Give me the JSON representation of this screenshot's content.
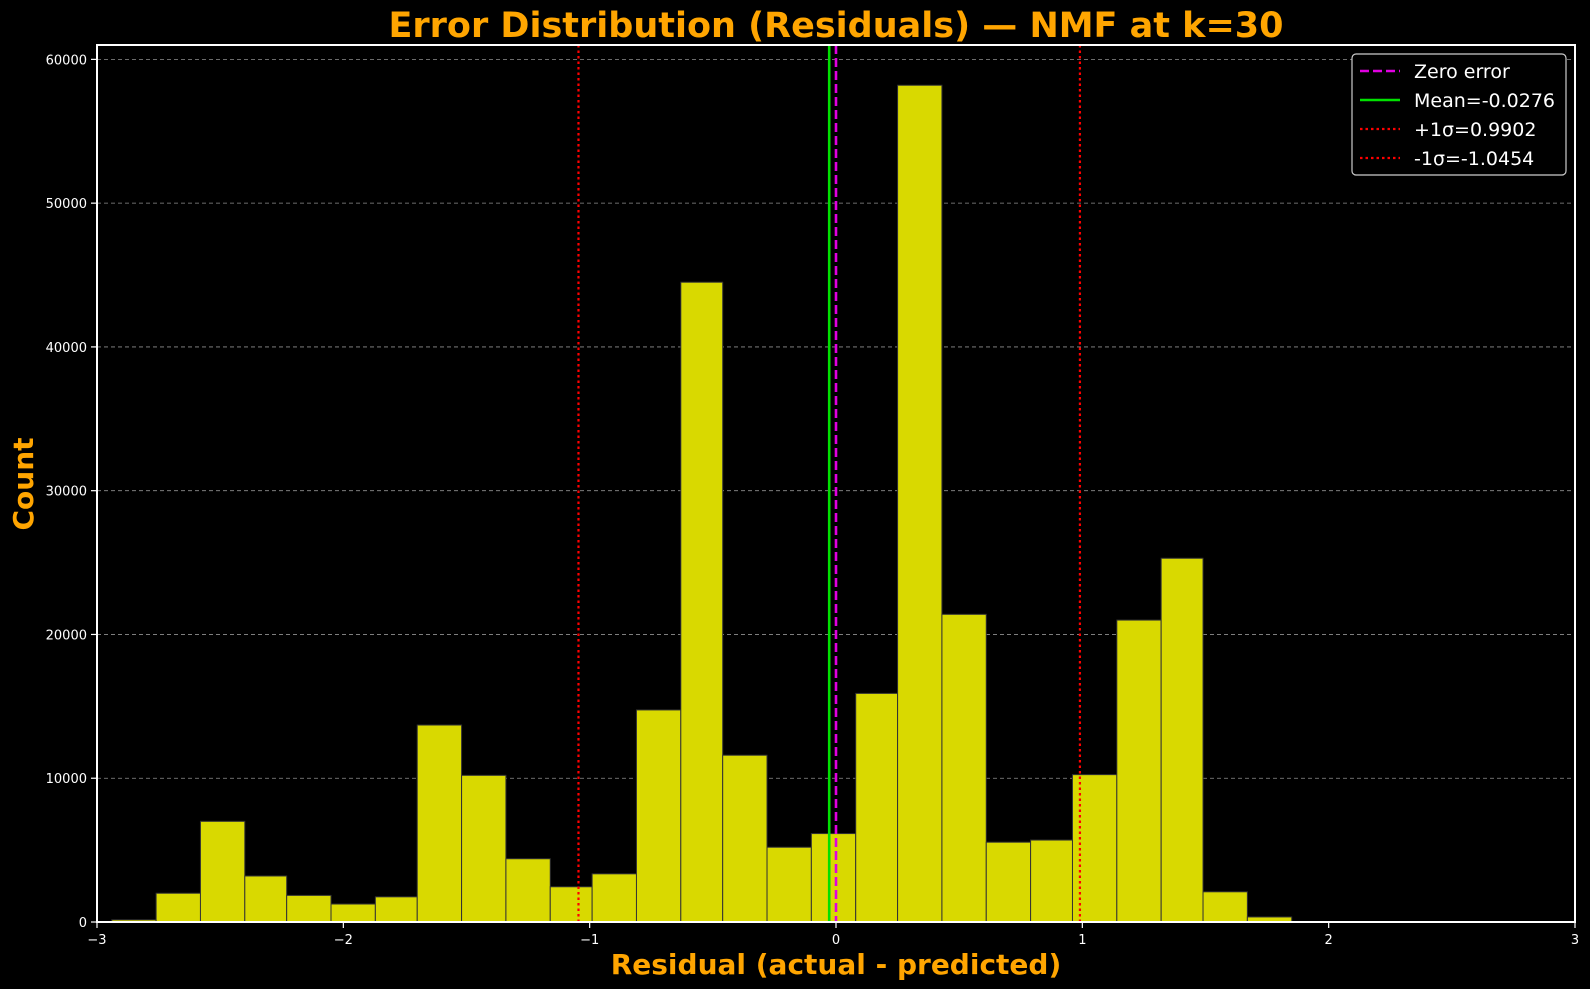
{
  "chart_data": {
    "type": "bar",
    "subtype": "histogram",
    "title": "Error Distribution (Residuals) — NMF at k=30",
    "xlabel": "Residual (actual - predicted)",
    "ylabel": "Count",
    "xlim": [
      -3,
      3
    ],
    "ylim": [
      0,
      61000
    ],
    "xticks": [
      -3,
      -2,
      -1,
      0,
      1,
      2,
      3
    ],
    "xtick_labels": [
      "−3",
      "−2",
      "−1",
      "0",
      "1",
      "2",
      "3"
    ],
    "yticks": [
      0,
      10000,
      20000,
      30000,
      40000,
      50000,
      60000
    ],
    "ytick_labels": [
      "0",
      "10000",
      "20000",
      "30000",
      "40000",
      "50000",
      "60000"
    ],
    "grid": "y-dashed",
    "legend_position": "top-right",
    "bar_color": "#D9D900",
    "bar_edge_color": "#333333",
    "bins": [
      {
        "x0": -2.94,
        "x1": -2.76,
        "count": 150
      },
      {
        "x0": -2.76,
        "x1": -2.58,
        "count": 2000
      },
      {
        "x0": -2.58,
        "x1": -2.4,
        "count": 7000
      },
      {
        "x0": -2.4,
        "x1": -2.23,
        "count": 3200
      },
      {
        "x0": -2.23,
        "x1": -2.05,
        "count": 1850
      },
      {
        "x0": -2.05,
        "x1": -1.87,
        "count": 1250
      },
      {
        "x0": -1.87,
        "x1": -1.7,
        "count": 1750
      },
      {
        "x0": -1.7,
        "x1": -1.52,
        "count": 13700
      },
      {
        "x0": -1.52,
        "x1": -1.34,
        "count": 10200
      },
      {
        "x0": -1.34,
        "x1": -1.16,
        "count": 4400
      },
      {
        "x0": -1.16,
        "x1": -0.99,
        "count": 2450
      },
      {
        "x0": -0.99,
        "x1": -0.81,
        "count": 3350
      },
      {
        "x0": -0.81,
        "x1": -0.63,
        "count": 14750
      },
      {
        "x0": -0.63,
        "x1": -0.46,
        "count": 44500
      },
      {
        "x0": -0.46,
        "x1": -0.28,
        "count": 11600
      },
      {
        "x0": -0.28,
        "x1": -0.1,
        "count": 5200
      },
      {
        "x0": -0.1,
        "x1": 0.08,
        "count": 6150
      },
      {
        "x0": 0.08,
        "x1": 0.25,
        "count": 15900
      },
      {
        "x0": 0.25,
        "x1": 0.43,
        "count": 58200
      },
      {
        "x0": 0.43,
        "x1": 0.61,
        "count": 21400
      },
      {
        "x0": 0.61,
        "x1": 0.79,
        "count": 5550
      },
      {
        "x0": 0.79,
        "x1": 0.96,
        "count": 5700
      },
      {
        "x0": 0.96,
        "x1": 1.14,
        "count": 10250
      },
      {
        "x0": 1.14,
        "x1": 1.32,
        "count": 21000
      },
      {
        "x0": 1.32,
        "x1": 1.49,
        "count": 25300
      },
      {
        "x0": 1.49,
        "x1": 1.67,
        "count": 2100
      },
      {
        "x0": 1.67,
        "x1": 1.85,
        "count": 350
      },
      {
        "x0": 1.85,
        "x1": 2.03,
        "count": 30
      }
    ],
    "reference_lines": [
      {
        "label": "Zero error",
        "x": 0,
        "color": "#E000E0",
        "style": "dashed"
      },
      {
        "label": "Mean=-0.0276",
        "x": -0.0276,
        "color": "#00E000",
        "style": "solid"
      },
      {
        "label": "+1σ=0.9902",
        "x": 0.9902,
        "color": "#FF0000",
        "style": "dotted"
      },
      {
        "label": "-1σ=-1.0454",
        "x": -1.0454,
        "color": "#FF0000",
        "style": "dotted"
      }
    ],
    "legend_order": [
      0,
      1,
      2,
      3
    ]
  },
  "colors": {
    "background": "#000000",
    "title": "#FFA500",
    "axis": "#FFFFFF",
    "grid": "#A0A0A0"
  }
}
